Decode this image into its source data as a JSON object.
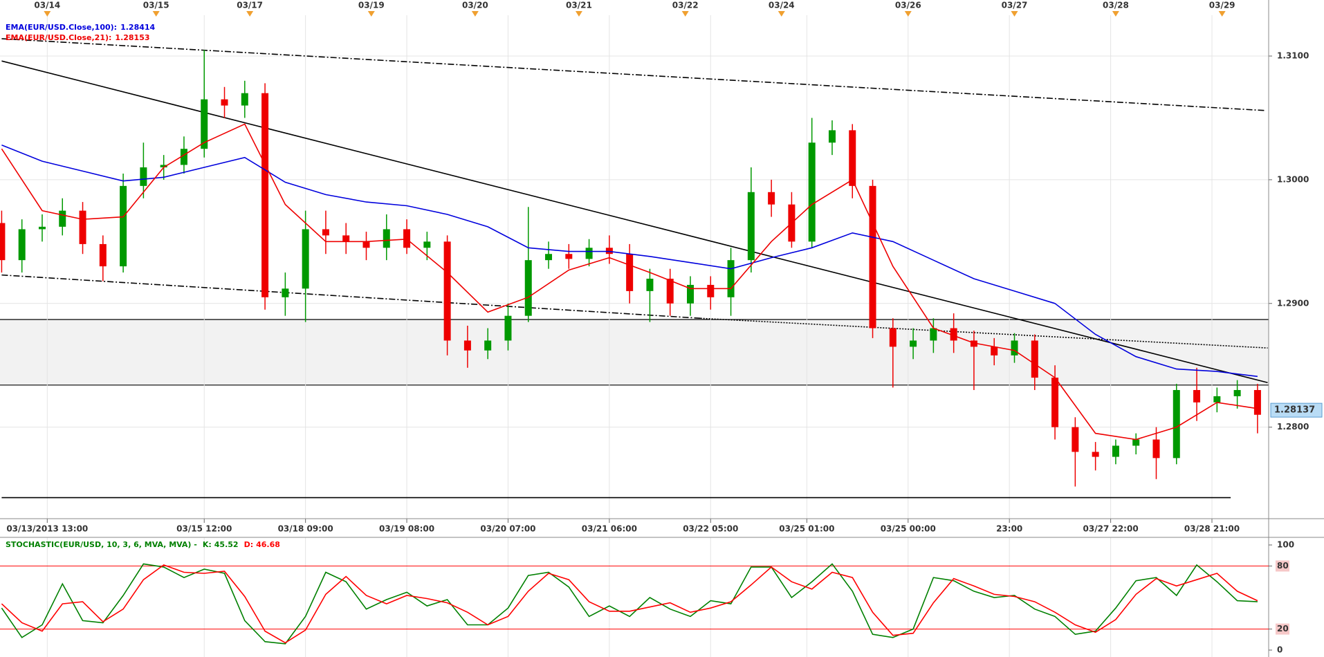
{
  "chart_data": [
    {
      "type": "candlestick",
      "x": [
        0,
        4,
        8,
        12,
        16,
        20,
        24,
        28,
        32,
        36,
        40,
        44,
        48,
        52,
        56,
        60,
        64,
        68,
        72,
        76,
        80,
        84,
        88,
        92,
        96,
        100,
        104,
        108,
        112,
        116,
        120,
        124,
        128,
        132,
        136,
        140,
        144,
        148,
        152,
        156,
        160,
        164,
        168,
        172,
        176,
        180,
        184,
        188,
        192,
        196,
        200,
        204,
        208,
        212,
        216,
        220,
        224,
        228,
        232,
        236,
        240,
        244,
        248
      ],
      "open": [
        1.2965,
        1.2935,
        1.296,
        1.2962,
        1.2975,
        1.2948,
        1.293,
        1.2995,
        1.301,
        1.3012,
        1.3025,
        1.3065,
        1.306,
        1.307,
        1.2905,
        1.2912,
        1.296,
        1.2955,
        1.295,
        1.2945,
        1.296,
        1.2945,
        1.295,
        1.287,
        1.2862,
        1.287,
        1.289,
        1.2935,
        1.294,
        1.2936,
        1.2945,
        1.294,
        1.291,
        1.292,
        1.29,
        1.2915,
        1.2905,
        1.2935,
        1.299,
        1.298,
        1.295,
        1.303,
        1.304,
        1.2995,
        1.288,
        1.2865,
        1.287,
        1.288,
        1.287,
        1.2865,
        1.2858,
        1.287,
        1.284,
        1.28,
        1.278,
        1.2776,
        1.2785,
        1.279,
        1.2775,
        1.283,
        1.282,
        1.2825,
        1.283
      ],
      "high": [
        1.2975,
        1.2968,
        1.2972,
        1.2985,
        1.2982,
        1.2955,
        1.3005,
        1.303,
        1.302,
        1.3035,
        1.3105,
        1.3075,
        1.308,
        1.3078,
        1.2925,
        1.2975,
        1.2975,
        1.2965,
        1.2958,
        1.2972,
        1.2968,
        1.2958,
        1.2955,
        1.2882,
        1.288,
        1.29,
        1.2978,
        1.295,
        1.2948,
        1.2952,
        1.2955,
        1.2948,
        1.2928,
        1.2928,
        1.2922,
        1.2922,
        1.2945,
        1.301,
        1.3,
        1.299,
        1.305,
        1.3048,
        1.3045,
        1.3,
        1.2888,
        1.288,
        1.2888,
        1.2892,
        1.2878,
        1.2872,
        1.2876,
        1.2875,
        1.285,
        1.2808,
        1.2788,
        1.279,
        1.2795,
        1.28,
        1.2835,
        1.2848,
        1.2832,
        1.2838,
        1.2835
      ],
      "low": [
        1.2925,
        1.2925,
        1.295,
        1.2955,
        1.294,
        1.2918,
        1.2925,
        1.2985,
        1.3,
        1.3005,
        1.3018,
        1.305,
        1.305,
        1.2895,
        1.289,
        1.2885,
        1.294,
        1.294,
        1.2935,
        1.2935,
        1.294,
        1.2935,
        1.2858,
        1.2848,
        1.2855,
        1.2862,
        1.2885,
        1.2928,
        1.2928,
        1.293,
        1.2932,
        1.29,
        1.2885,
        1.289,
        1.289,
        1.2895,
        1.289,
        1.2925,
        1.297,
        1.2945,
        1.2945,
        1.302,
        1.2985,
        1.2872,
        1.2832,
        1.2855,
        1.286,
        1.286,
        1.283,
        1.285,
        1.2852,
        1.283,
        1.279,
        1.2752,
        1.2765,
        1.277,
        1.2778,
        1.2758,
        1.277,
        1.2805,
        1.2812,
        1.2815,
        1.2795
      ],
      "close": [
        1.2935,
        1.296,
        1.2962,
        1.2975,
        1.2948,
        1.293,
        1.2995,
        1.301,
        1.3012,
        1.3025,
        1.3065,
        1.306,
        1.307,
        1.2905,
        1.2912,
        1.296,
        1.2955,
        1.295,
        1.2945,
        1.296,
        1.2945,
        1.295,
        1.287,
        1.2862,
        1.287,
        1.289,
        1.2935,
        1.294,
        1.2936,
        1.2945,
        1.294,
        1.291,
        1.292,
        1.29,
        1.2915,
        1.2905,
        1.2935,
        1.299,
        1.298,
        1.295,
        1.303,
        1.304,
        1.2995,
        1.288,
        1.2865,
        1.287,
        1.288,
        1.287,
        1.2865,
        1.2858,
        1.287,
        1.284,
        1.28,
        1.278,
        1.2776,
        1.2785,
        1.279,
        1.2775,
        1.283,
        1.282,
        1.2825,
        1.283,
        1.281
      ],
      "up_color": "#009900",
      "down_color": "#ee0000",
      "series": [
        {
          "name": "EMA(EUR/USD.Close,100):",
          "last": 1.28414,
          "color": "#0000dd",
          "x": [
            0,
            8,
            16,
            24,
            32,
            40,
            48,
            56,
            64,
            72,
            80,
            88,
            96,
            104,
            112,
            120,
            128,
            136,
            144,
            152,
            160,
            168,
            176,
            184,
            192,
            200,
            208,
            216,
            224,
            232,
            240,
            248
          ],
          "values": [
            1.3028,
            1.3015,
            1.3007,
            1.2999,
            1.3002,
            1.301,
            1.3018,
            1.2998,
            1.2988,
            1.2982,
            1.2979,
            1.2972,
            1.2962,
            1.2945,
            1.2942,
            1.2942,
            1.2938,
            1.2933,
            1.2928,
            1.2937,
            1.2945,
            1.2957,
            1.295,
            1.2935,
            1.292,
            1.291,
            1.29,
            1.2875,
            1.2857,
            1.2847,
            1.2845,
            1.2841
          ]
        },
        {
          "name": "EMA(EUR/USD.Close,21):",
          "last": 1.28153,
          "color": "#ee0000",
          "x": [
            0,
            8,
            16,
            24,
            32,
            40,
            48,
            56,
            64,
            72,
            80,
            88,
            96,
            104,
            112,
            120,
            128,
            136,
            144,
            152,
            160,
            168,
            176,
            184,
            192,
            200,
            208,
            216,
            224,
            232,
            240,
            248
          ],
          "values": [
            1.3025,
            1.2975,
            1.2968,
            1.297,
            1.301,
            1.303,
            1.3045,
            1.298,
            1.295,
            1.295,
            1.2952,
            1.2925,
            1.2893,
            1.2905,
            1.2927,
            1.2937,
            1.2925,
            1.2912,
            1.2912,
            1.295,
            1.298,
            1.3,
            1.293,
            1.288,
            1.2868,
            1.2862,
            1.284,
            1.2795,
            1.279,
            1.28,
            1.282,
            1.2815
          ]
        }
      ],
      "last_price": 1.28137,
      "xlim": [
        -0.33,
        250.2
      ],
      "ylim": [
        1.2726,
        1.3133
      ],
      "yticks": [
        {
          "value": 1.28,
          "label": "1.2800"
        },
        {
          "value": 1.29,
          "label": "1.2900"
        },
        {
          "value": 1.3,
          "label": "1.3000"
        },
        {
          "value": 1.31,
          "label": "1.3100"
        }
      ],
      "xticks": [
        {
          "value": 9,
          "label": "03/13/2013 13:00"
        },
        {
          "value": 40,
          "label": "03/15 12:00"
        },
        {
          "value": 60,
          "label": "03/18 09:00"
        },
        {
          "value": 80,
          "label": "03/19 08:00"
        },
        {
          "value": 100,
          "label": "03/20 07:00"
        },
        {
          "value": 120,
          "label": "03/21 06:00"
        },
        {
          "value": 140,
          "label": "03/22 05:00"
        },
        {
          "value": 159,
          "label": "03/25 01:00"
        },
        {
          "value": 179,
          "label": "03/25 00:00"
        },
        {
          "value": 199,
          "label": "23:00"
        },
        {
          "value": 219,
          "label": "03/27 22:00"
        },
        {
          "value": 239,
          "label": "03/28 21:00"
        }
      ],
      "x2ticks": [
        {
          "value": 9,
          "label": "03/14"
        },
        {
          "value": 30.5,
          "label": "03/15"
        },
        {
          "value": 49,
          "label": "03/17"
        },
        {
          "value": 73,
          "label": "03/19"
        },
        {
          "value": 93.5,
          "label": "03/20"
        },
        {
          "value": 114,
          "label": "03/21"
        },
        {
          "value": 135,
          "label": "03/22"
        },
        {
          "value": 154,
          "label": "03/24"
        },
        {
          "value": 179,
          "label": "03/26"
        },
        {
          "value": 200,
          "label": "03/27"
        },
        {
          "value": 220,
          "label": "03/28"
        },
        {
          "value": 241,
          "label": "03/29"
        }
      ],
      "grid": true,
      "band": {
        "x": [
          -0.33,
          250.2
        ],
        "y": [
          1.2834,
          1.2887
        ],
        "color": "#f2f2f2"
      },
      "trendlines": [
        {
          "x": [
            0,
            250
          ],
          "y": [
            1.3096,
            1.2836
          ],
          "dash": "solid"
        },
        {
          "x": [
            0,
            249.3
          ],
          "y": [
            1.3114,
            1.3056
          ],
          "dash": "dashdot"
        },
        {
          "x": [
            0,
            138
          ],
          "y": [
            1.2923,
            1.2888
          ],
          "dash": "dashdot"
        },
        {
          "x": [
            138,
            250
          ],
          "y": [
            1.2888,
            1.2864
          ],
          "dash": "dotted"
        },
        {
          "x": [
            0,
            242.7
          ],
          "y": [
            1.2743,
            1.2743
          ],
          "dash": "solid"
        }
      ]
    },
    {
      "type": "line",
      "title": "STOCHASTIC(EUR/USD, 10, 3, 6, MVA, MVA) -",
      "x": [
        0,
        4,
        8,
        12,
        16,
        20,
        24,
        28,
        32,
        36,
        40,
        44,
        48,
        52,
        56,
        60,
        64,
        68,
        72,
        76,
        80,
        84,
        88,
        92,
        96,
        100,
        104,
        108,
        112,
        116,
        120,
        124,
        128,
        132,
        136,
        140,
        144,
        148,
        152,
        156,
        160,
        164,
        168,
        172,
        176,
        180,
        184,
        188,
        192,
        196,
        200,
        204,
        208,
        212,
        216,
        220,
        224,
        228,
        232,
        236,
        240,
        244,
        248
      ],
      "series": [
        {
          "name": "K:",
          "last": 45.52,
          "color": "#008000",
          "values": [
            40,
            12,
            24,
            63,
            28,
            26,
            52,
            82,
            79,
            69,
            77,
            73,
            28,
            8,
            6,
            32,
            74,
            65,
            39,
            48,
            55,
            42,
            48,
            24,
            24,
            40,
            71,
            74,
            60,
            32,
            42,
            32,
            50,
            39,
            32,
            47,
            44,
            79,
            79,
            50,
            65,
            82,
            56,
            15,
            12,
            20,
            69,
            66,
            56,
            50,
            52,
            39,
            32,
            15,
            18,
            40,
            66,
            69,
            52,
            81,
            65,
            47,
            46
          ]
        },
        {
          "name": "D:",
          "last": 46.68,
          "color": "#ff0000",
          "values": [
            44,
            26,
            18,
            44,
            46,
            27,
            39,
            67,
            81,
            74,
            73,
            75,
            51,
            18,
            7,
            19,
            53,
            70,
            52,
            44,
            52,
            49,
            45,
            36,
            24,
            32,
            56,
            73,
            67,
            46,
            37,
            37,
            41,
            45,
            36,
            40,
            46,
            62,
            79,
            65,
            58,
            74,
            69,
            36,
            14,
            16,
            45,
            68,
            61,
            53,
            51,
            46,
            36,
            24,
            17,
            29,
            53,
            68,
            61,
            67,
            73,
            56,
            47
          ]
        }
      ],
      "xlim": [
        -0.33,
        250.2
      ],
      "ylim": [
        0,
        100
      ],
      "yticks": [
        0,
        20,
        80,
        100
      ],
      "levels": [
        20,
        80
      ],
      "level_color": "#ff0000"
    }
  ]
}
